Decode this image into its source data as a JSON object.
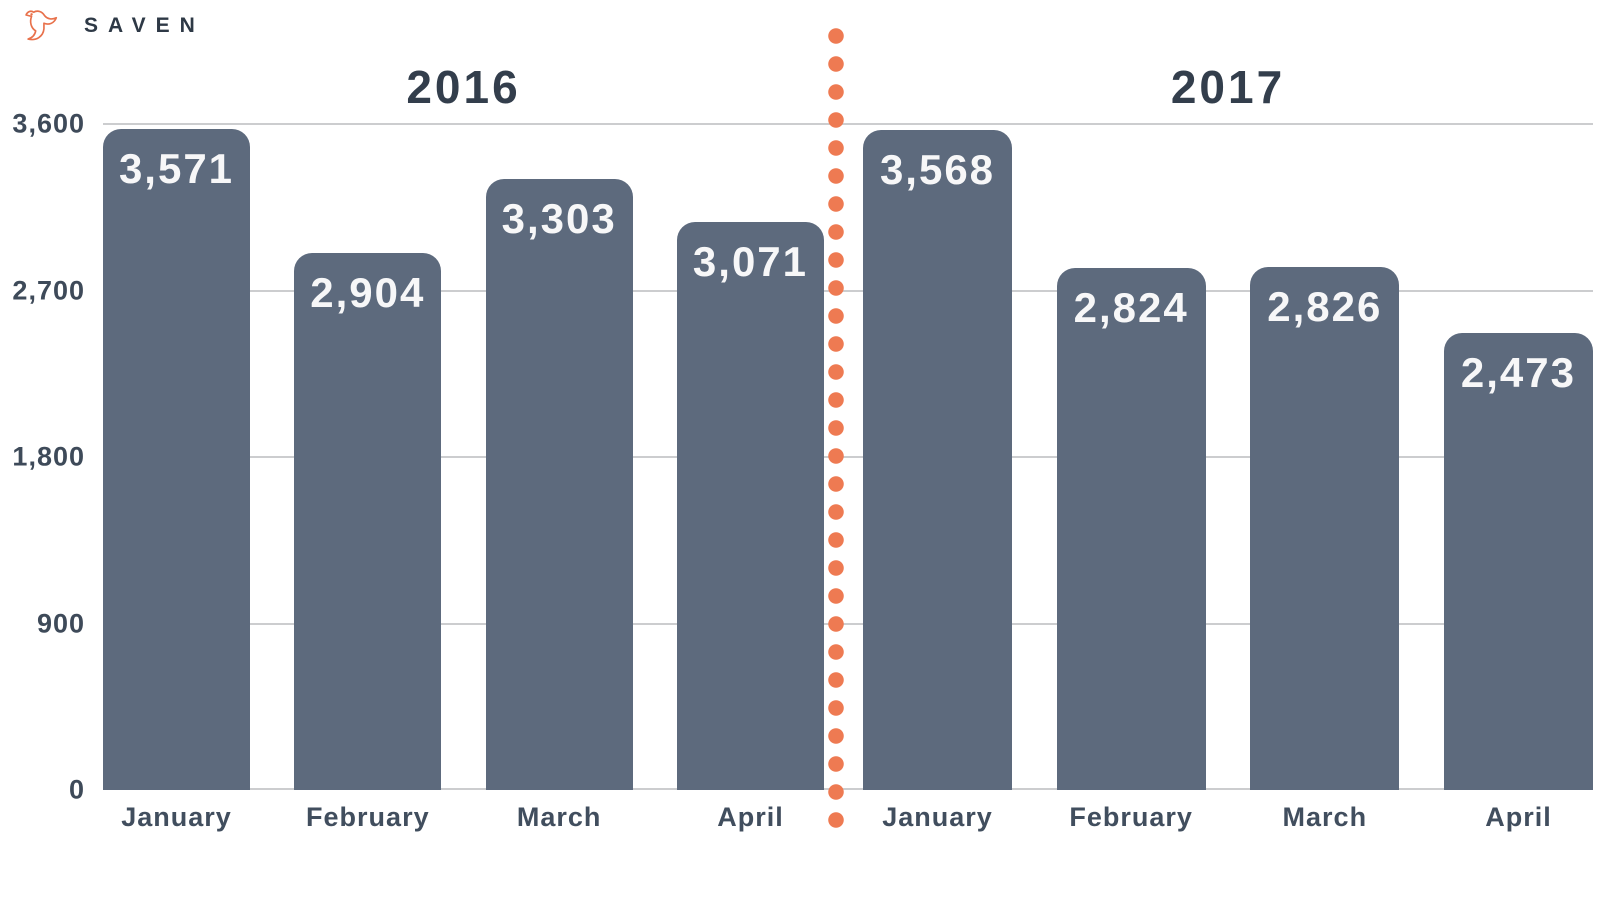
{
  "logo": {
    "brand": "SAVEN",
    "icon": "bird-logo-icon",
    "icon_color": "#e8714b",
    "text_color": "#2e3946"
  },
  "chart_data": {
    "type": "bar",
    "title": "",
    "legend": "none",
    "grid": true,
    "y_axis": {
      "max": 3600,
      "min": 0,
      "ticks": [
        3600,
        2700,
        1800,
        900,
        0
      ],
      "tick_labels": [
        "3,600",
        "2,700",
        "1,800",
        "900",
        "0"
      ]
    },
    "bar_color": "#5d6a7d",
    "value_label_color": "#ffffff",
    "gridline_color": "#cccdcf",
    "divider": {
      "style": "dotted-vertical-line",
      "color": "#ee7a52"
    },
    "groups": [
      {
        "label": "2016",
        "categories": [
          "January",
          "February",
          "March",
          "April"
        ],
        "values": [
          3571,
          2904,
          3303,
          3071
        ],
        "display_values": [
          "3,571",
          "2,904",
          "3,303",
          "3,071"
        ]
      },
      {
        "label": "2017",
        "categories": [
          "January",
          "February",
          "March",
          "April"
        ],
        "values": [
          3568,
          2824,
          2826,
          2473
        ],
        "display_values": [
          "3,568",
          "2,824",
          "2,826",
          "2,473"
        ]
      }
    ]
  }
}
